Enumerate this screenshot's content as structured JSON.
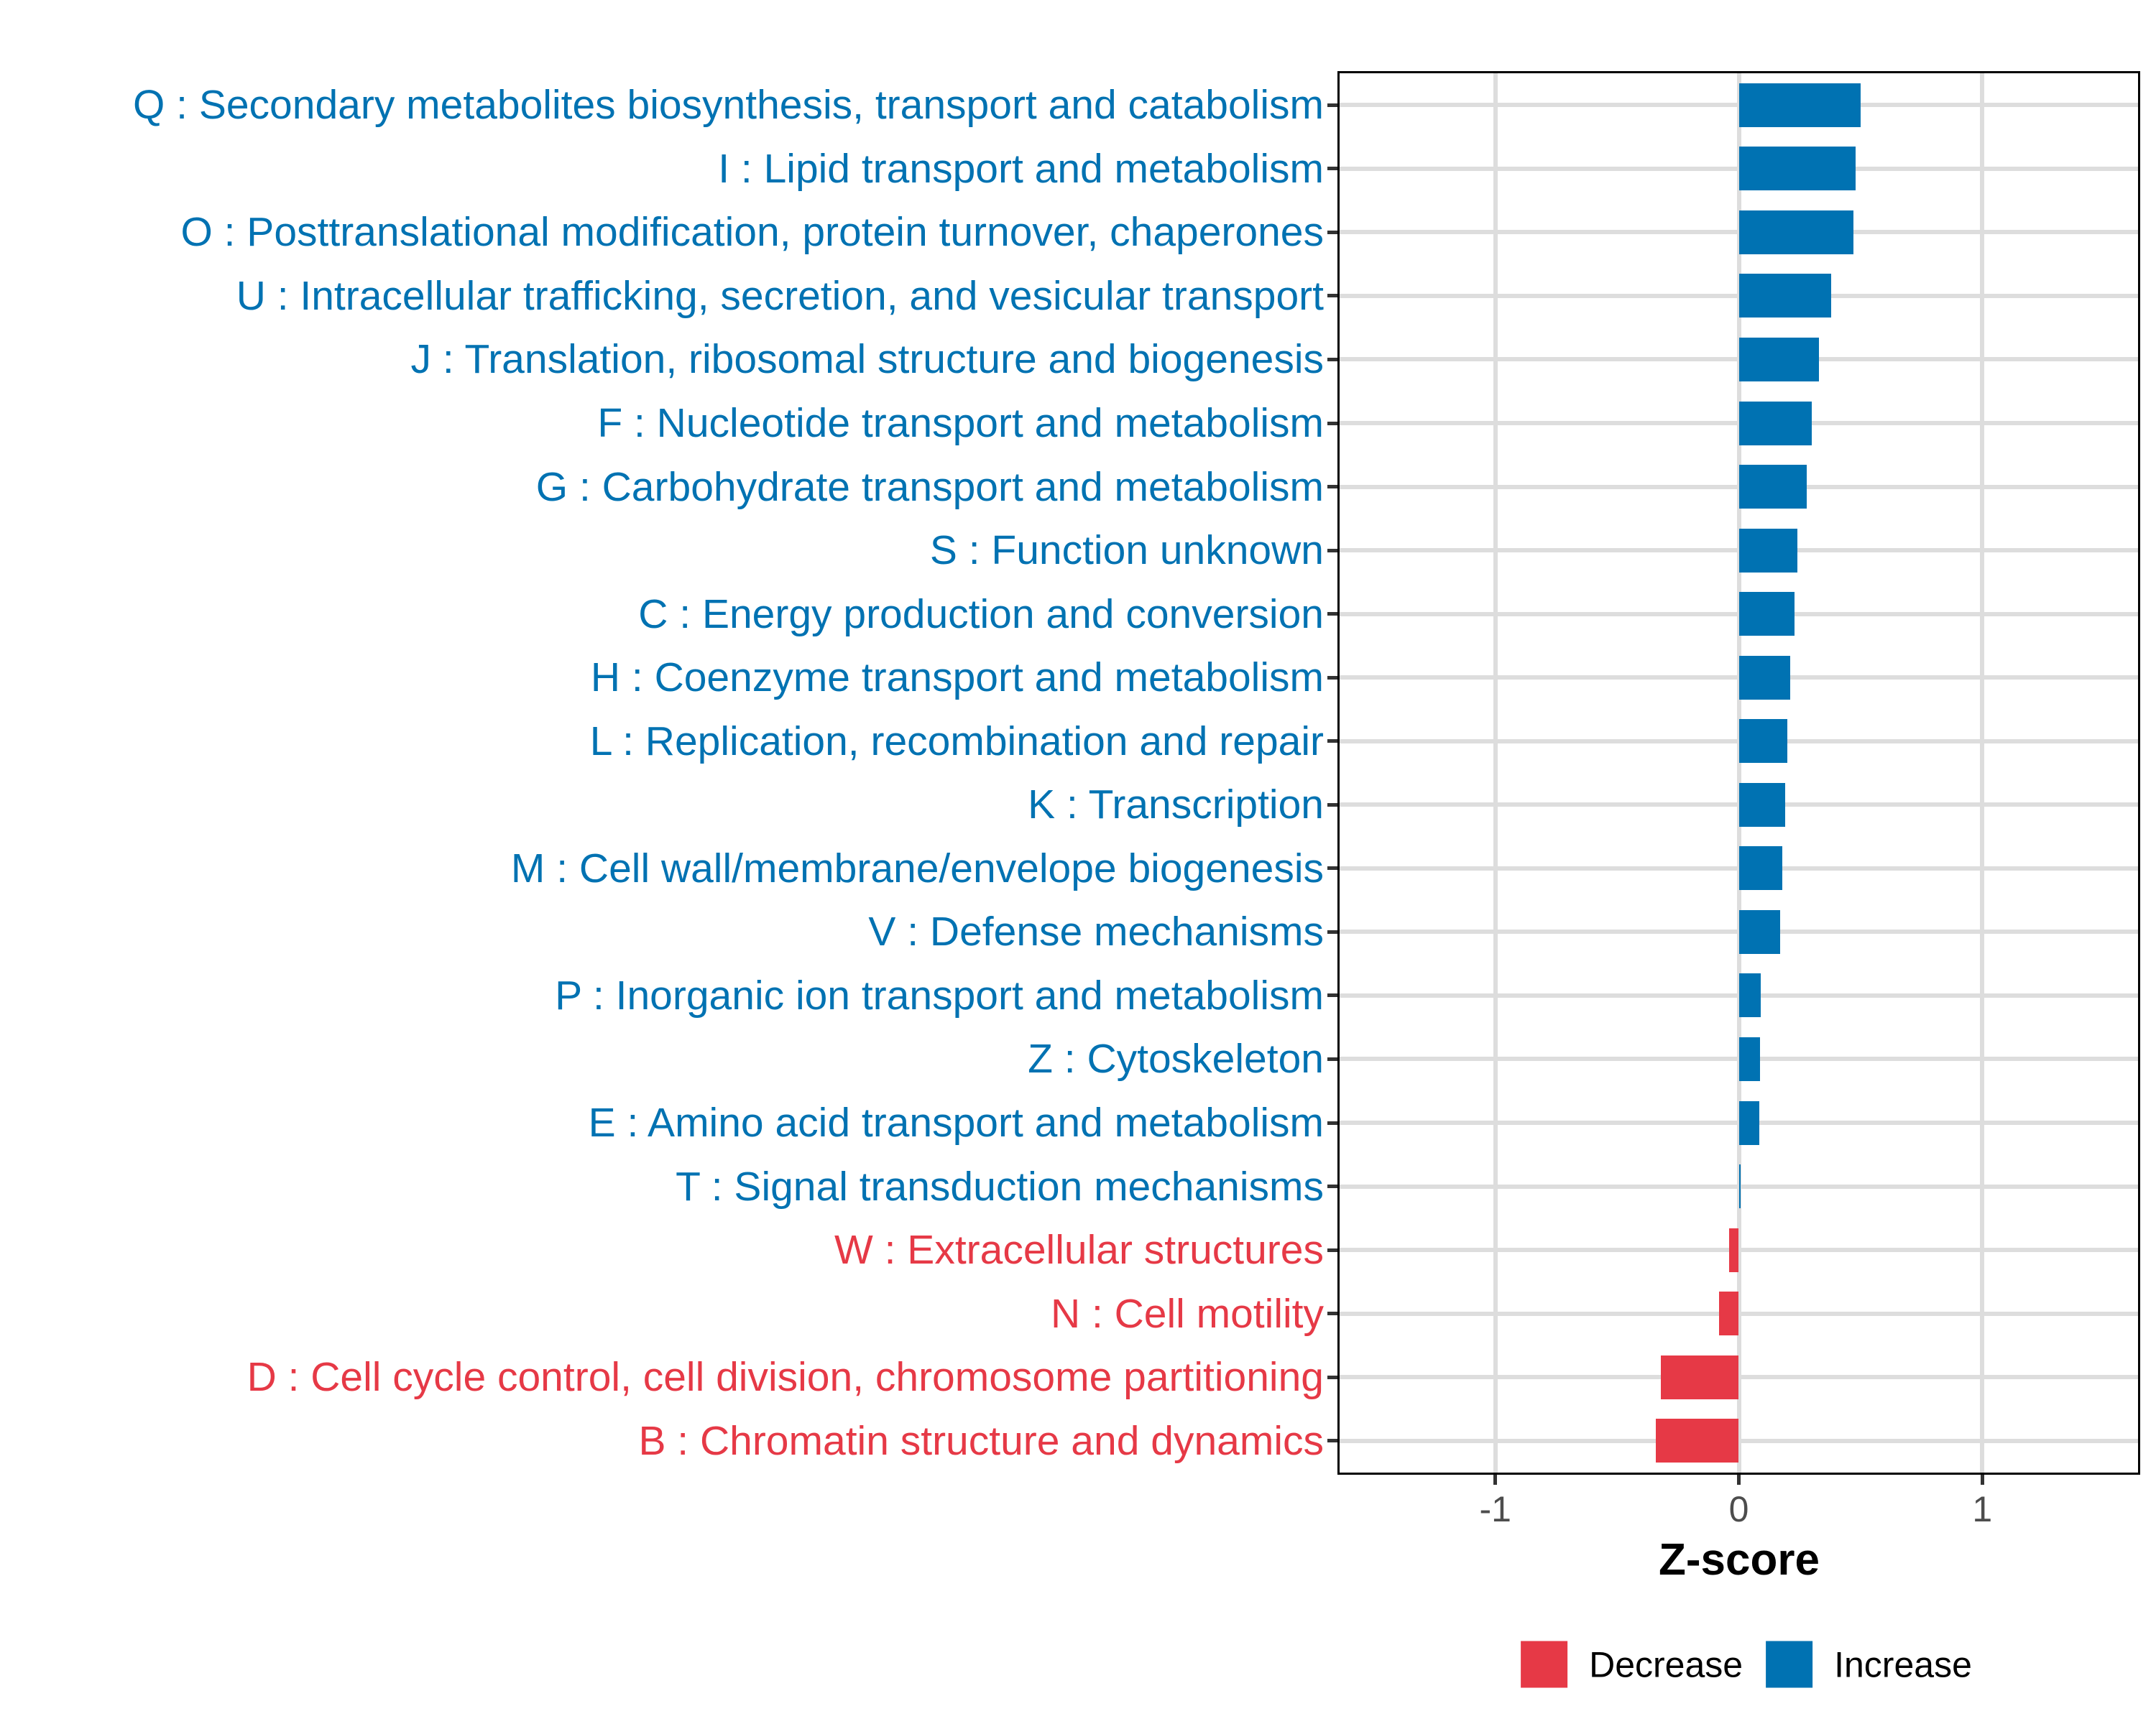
{
  "chart_data": {
    "type": "bar",
    "orientation": "horizontal",
    "title": "",
    "xlabel": "Z-score",
    "ylabel": "",
    "xlim": [
      -1.64,
      1.64
    ],
    "x_ticks": [
      -1,
      0,
      1
    ],
    "x_tick_labels": [
      "-1",
      "0",
      "1"
    ],
    "grid": {
      "vertical_major": true,
      "horizontal_major": true,
      "minor": false
    },
    "legend": {
      "position": "bottom-center",
      "entries": [
        {
          "label": "Decrease",
          "color": "#E63946"
        },
        {
          "label": "Increase",
          "color": "#0072B2"
        }
      ]
    },
    "categories": [
      {
        "code": "Q",
        "label": "Q : Secondary metabolites biosynthesis, transport and catabolism",
        "value": 0.5,
        "direction": "Increase"
      },
      {
        "code": "I",
        "label": "I : Lipid transport and metabolism",
        "value": 0.48,
        "direction": "Increase"
      },
      {
        "code": "O",
        "label": "O : Posttranslational modification, protein turnover, chaperones",
        "value": 0.47,
        "direction": "Increase"
      },
      {
        "code": "U",
        "label": "U : Intracellular trafficking, secretion, and vesicular transport",
        "value": 0.38,
        "direction": "Increase"
      },
      {
        "code": "J",
        "label": "J : Translation, ribosomal structure and biogenesis",
        "value": 0.33,
        "direction": "Increase"
      },
      {
        "code": "F",
        "label": "F : Nucleotide transport and metabolism",
        "value": 0.3,
        "direction": "Increase"
      },
      {
        "code": "G",
        "label": "G : Carbohydrate transport and metabolism",
        "value": 0.28,
        "direction": "Increase"
      },
      {
        "code": "S",
        "label": "S : Function unknown",
        "value": 0.24,
        "direction": "Increase"
      },
      {
        "code": "C",
        "label": "C : Energy production and conversion",
        "value": 0.23,
        "direction": "Increase"
      },
      {
        "code": "H",
        "label": "H : Coenzyme transport and metabolism",
        "value": 0.21,
        "direction": "Increase"
      },
      {
        "code": "L",
        "label": "L : Replication, recombination and repair",
        "value": 0.2,
        "direction": "Increase"
      },
      {
        "code": "K",
        "label": "K : Transcription",
        "value": 0.19,
        "direction": "Increase"
      },
      {
        "code": "M",
        "label": "M : Cell wall/membrane/envelope biogenesis",
        "value": 0.18,
        "direction": "Increase"
      },
      {
        "code": "V",
        "label": "V : Defense mechanisms",
        "value": 0.17,
        "direction": "Increase"
      },
      {
        "code": "P",
        "label": "P : Inorganic ion transport and metabolism",
        "value": 0.09,
        "direction": "Increase"
      },
      {
        "code": "Z",
        "label": "Z : Cytoskeleton",
        "value": 0.088,
        "direction": "Increase"
      },
      {
        "code": "E",
        "label": "E : Amino acid transport and metabolism",
        "value": 0.083,
        "direction": "Increase"
      },
      {
        "code": "T",
        "label": "T : Signal transduction mechanisms",
        "value": 0.004,
        "direction": "Increase"
      },
      {
        "code": "W",
        "label": "W : Extracellular structures",
        "value": -0.04,
        "direction": "Decrease"
      },
      {
        "code": "N",
        "label": "N : Cell motility",
        "value": -0.08,
        "direction": "Decrease"
      },
      {
        "code": "D",
        "label": "D : Cell cycle control, cell division, chromosome partitioning",
        "value": -0.32,
        "direction": "Decrease"
      },
      {
        "code": "B",
        "label": "B : Chromatin structure and dynamics",
        "value": -0.34,
        "direction": "Decrease"
      }
    ]
  },
  "colors": {
    "increase": "#0072B2",
    "decrease": "#E63946",
    "gridline": "#DDDDDD",
    "axis_tick_text": "#4D4D4D",
    "tick_mark": "#333333",
    "panel_border": "#000000",
    "background": "#FFFFFF"
  }
}
